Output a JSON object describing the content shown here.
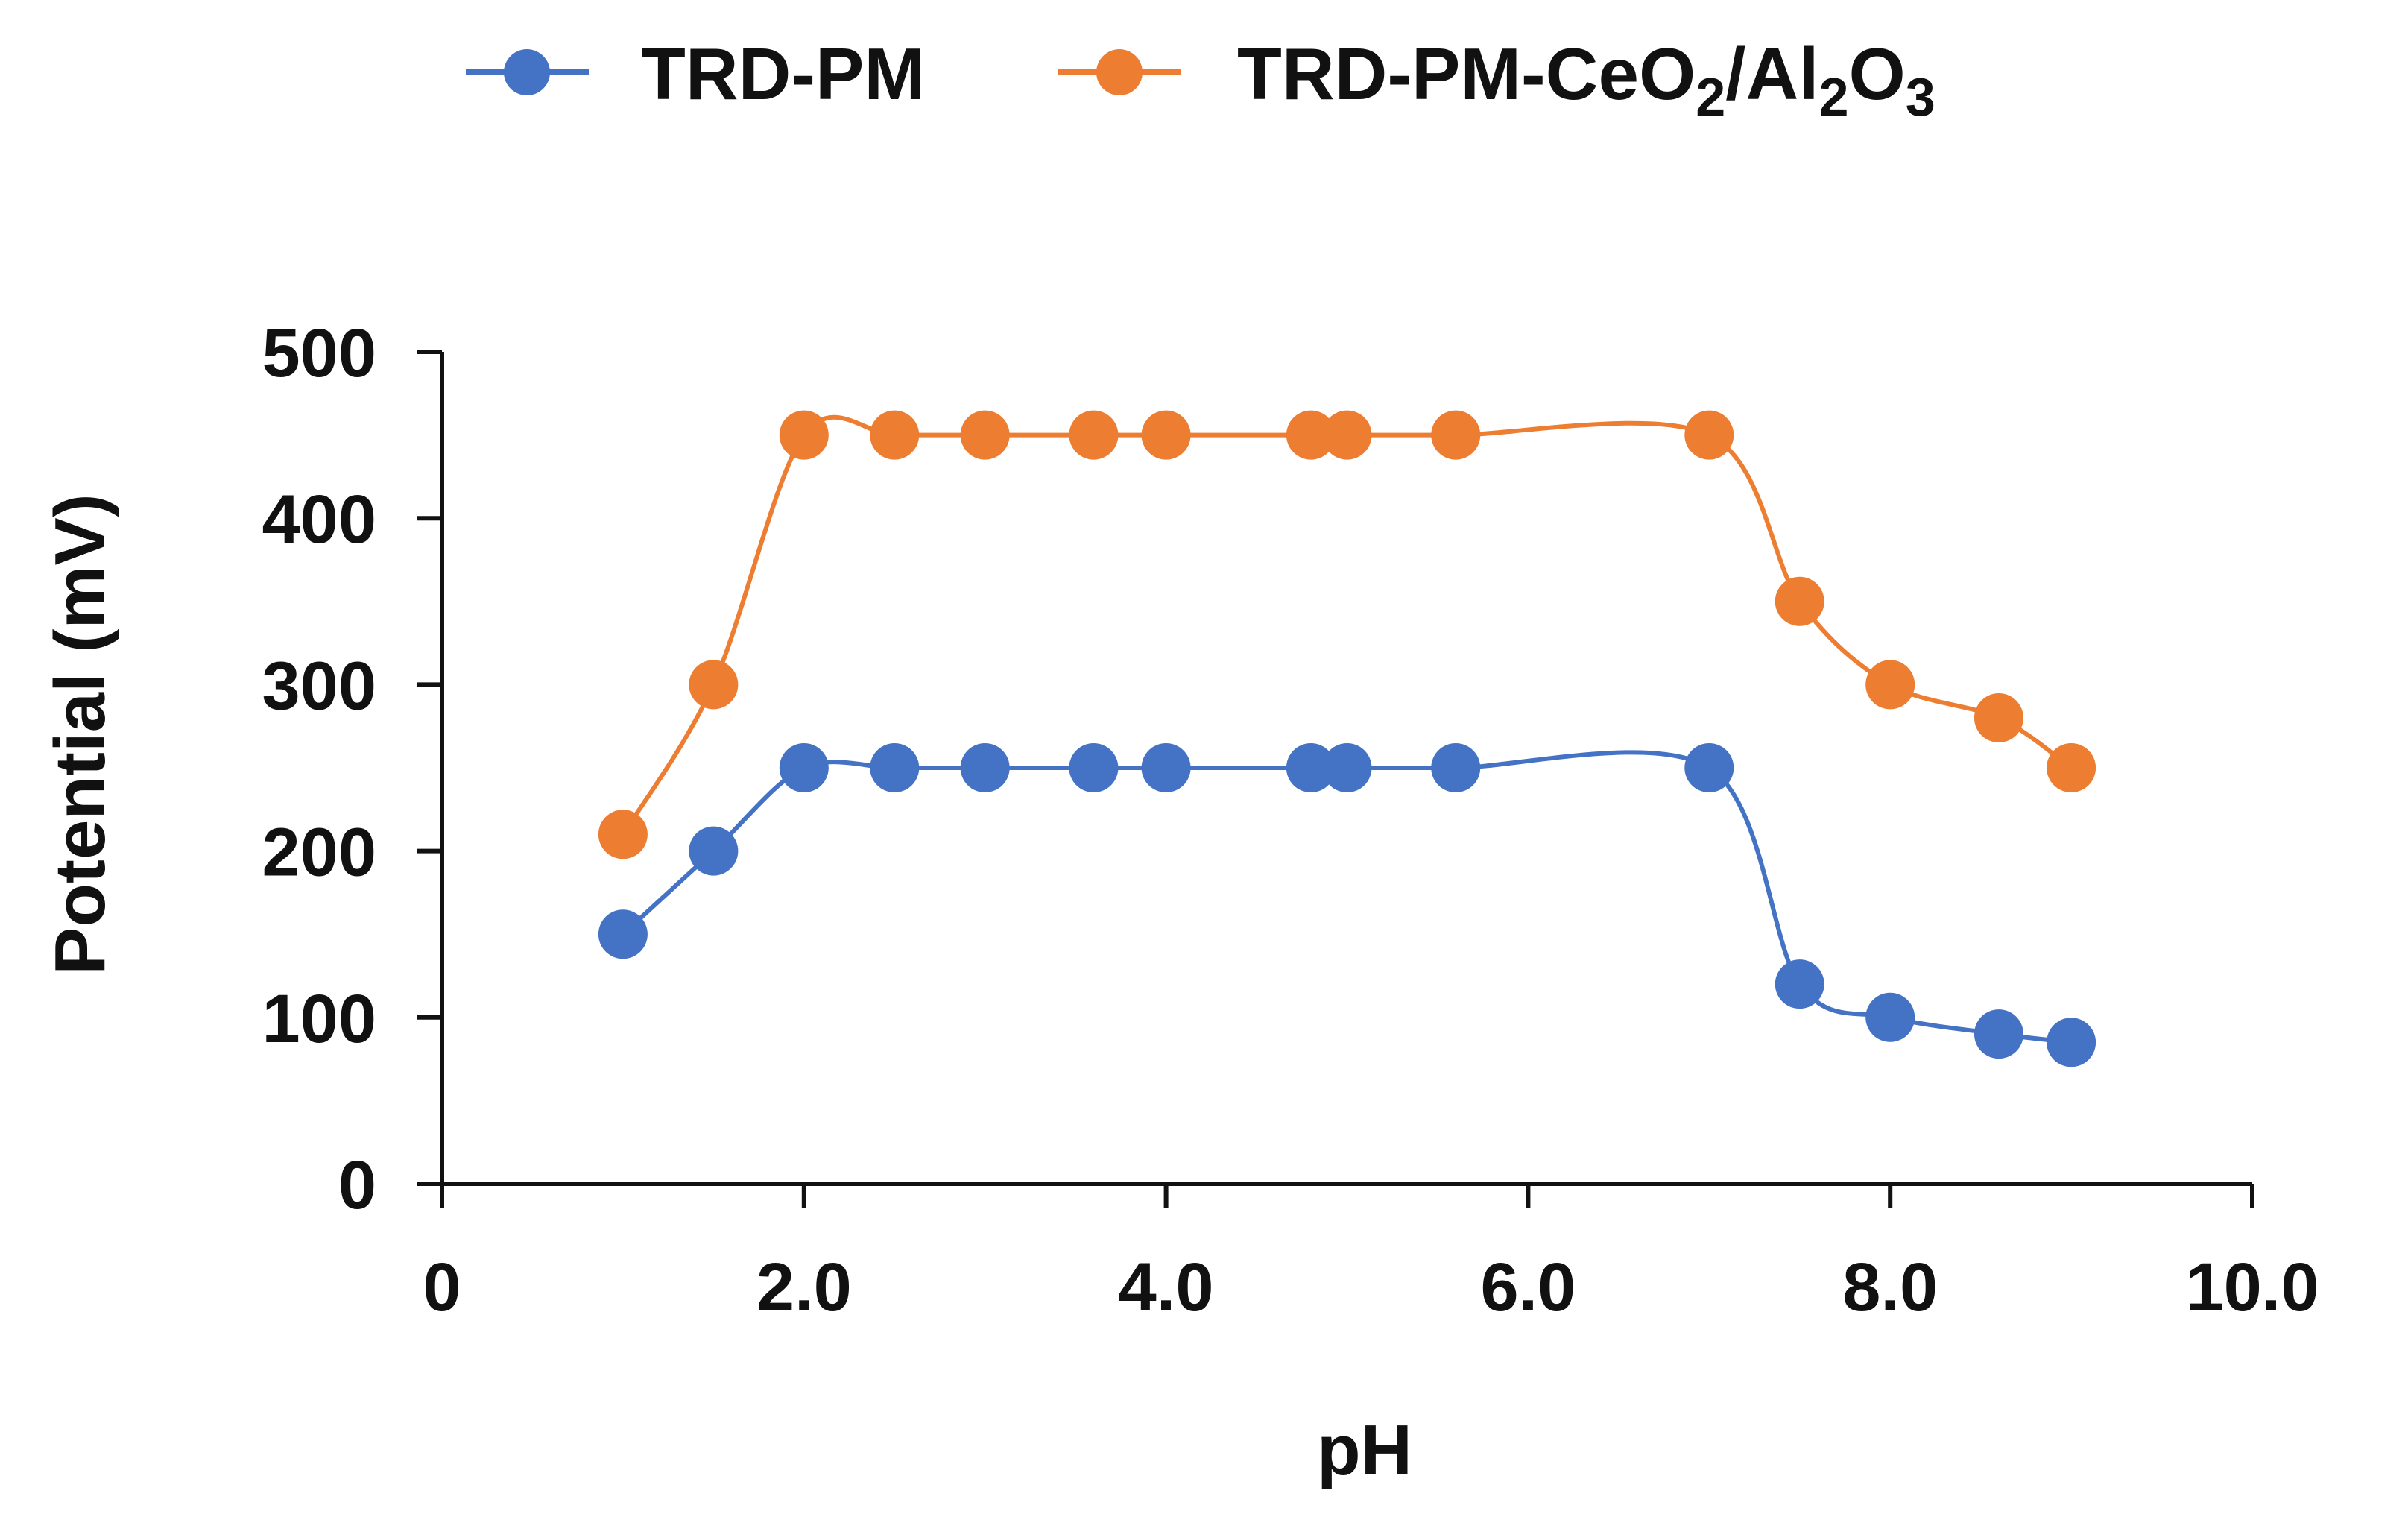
{
  "chart_data": {
    "type": "line",
    "title": "",
    "xlabel": "pH",
    "ylabel": "Potential (mV)",
    "xlim": [
      0,
      10
    ],
    "ylim": [
      0,
      500
    ],
    "xticks": [
      {
        "value": 0,
        "label": "0"
      },
      {
        "value": 2,
        "label": "2.0"
      },
      {
        "value": 4,
        "label": "4.0"
      },
      {
        "value": 6,
        "label": "6.0"
      },
      {
        "value": 8,
        "label": "8.0"
      },
      {
        "value": 10,
        "label": "10.0"
      }
    ],
    "yticks": [
      {
        "value": 0,
        "label": "0"
      },
      {
        "value": 100,
        "label": "100"
      },
      {
        "value": 200,
        "label": "200"
      },
      {
        "value": 300,
        "label": "300"
      },
      {
        "value": 400,
        "label": "400"
      },
      {
        "value": 500,
        "label": "500"
      }
    ],
    "grid": false,
    "legend_position": "top-center",
    "series": [
      {
        "name": "TRD-PM",
        "color": "#4472C4",
        "x": [
          1.0,
          1.5,
          2.0,
          2.5,
          3.0,
          3.6,
          4.0,
          4.8,
          5.0,
          5.6,
          7.0,
          7.5,
          8.0,
          8.6,
          9.0
        ],
        "y": [
          150,
          200,
          250,
          250,
          250,
          250,
          250,
          250,
          250,
          250,
          250,
          120,
          100,
          90,
          85
        ]
      },
      {
        "name": "TRD-PM-CeO2/Al2O3",
        "color": "#ED7D31",
        "x": [
          1.0,
          1.5,
          2.0,
          2.5,
          3.0,
          3.6,
          4.0,
          4.8,
          5.0,
          5.6,
          7.0,
          7.5,
          8.0,
          8.6,
          9.0
        ],
        "y": [
          210,
          300,
          450,
          450,
          450,
          450,
          450,
          450,
          450,
          450,
          450,
          350,
          300,
          280,
          250
        ]
      }
    ],
    "legend": {
      "series1_label": "TRD-PM",
      "series2_parts": {
        "a": "TRD-PM-CeO",
        "b": "2",
        "c": "/Al",
        "d": "2",
        "e": "O",
        "f": "3"
      }
    }
  }
}
